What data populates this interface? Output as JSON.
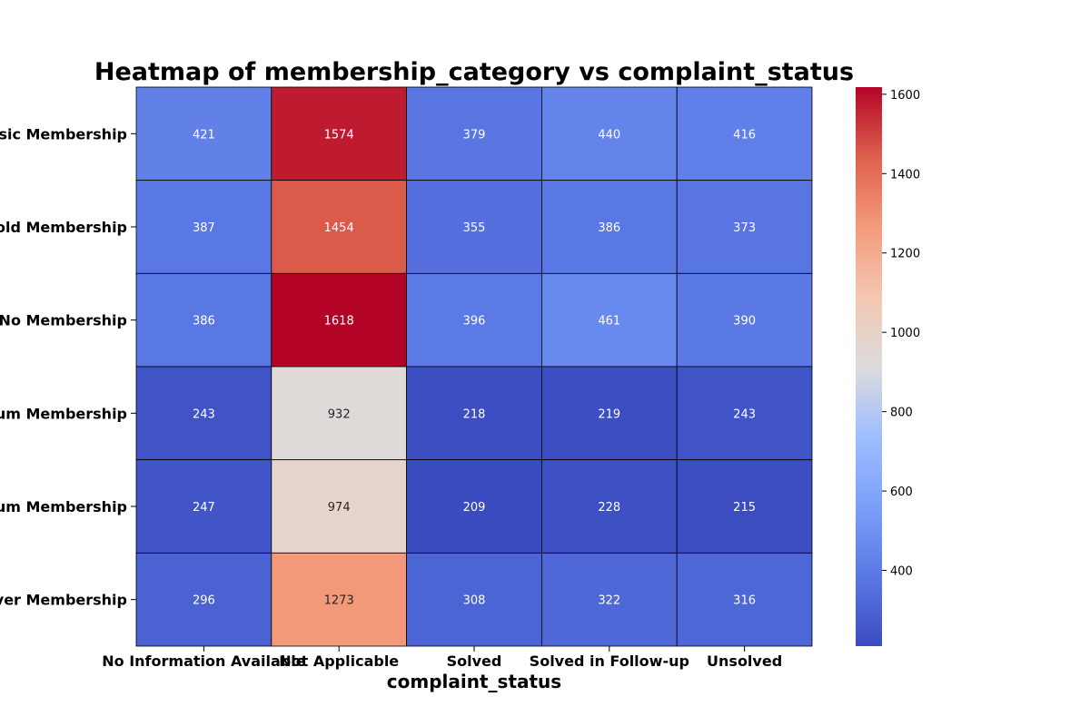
{
  "chart_data": {
    "type": "heatmap",
    "title": "Heatmap of membership_category vs complaint_status",
    "xlabel": "complaint_status",
    "ylabel": "",
    "x_categories": [
      "No Information Available",
      "Not Applicable",
      "Solved",
      "Solved in Follow-up",
      "Unsolved"
    ],
    "y_categories": [
      "Basic Membership",
      "Gold Membership",
      "No Membership",
      "Platinum Membership",
      "Premium Membership",
      "Silver Membership"
    ],
    "values": [
      [
        421,
        1574,
        379,
        440,
        416
      ],
      [
        387,
        1454,
        355,
        386,
        373
      ],
      [
        386,
        1618,
        396,
        461,
        390
      ],
      [
        243,
        932,
        218,
        219,
        243
      ],
      [
        247,
        974,
        209,
        228,
        215
      ],
      [
        296,
        1273,
        308,
        322,
        316
      ]
    ],
    "colormap": "coolwarm",
    "colorbar": {
      "vmin": 209,
      "vmax": 1618,
      "ticks": [
        400,
        600,
        800,
        1000,
        1200,
        1400,
        1600
      ]
    },
    "annotations": true,
    "cell_borders": "black",
    "grid": false,
    "legend": "colorbar-right"
  }
}
